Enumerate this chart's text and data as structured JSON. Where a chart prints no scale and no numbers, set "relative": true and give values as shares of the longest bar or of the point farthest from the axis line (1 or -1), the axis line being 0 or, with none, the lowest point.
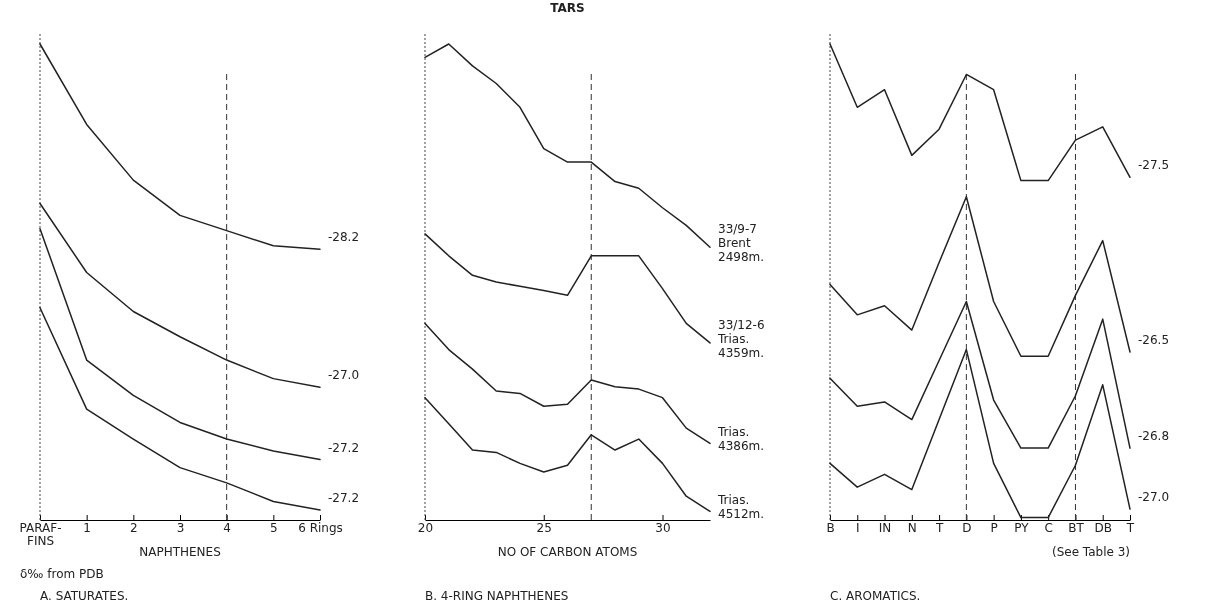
{
  "chart_data": [
    {
      "type": "line",
      "title": "A. SATURATES.",
      "xlabel": "NAPHTHENES",
      "annotations": [
        "δ‰ from PDB"
      ],
      "relative": true,
      "x": [
        0,
        1,
        2,
        3,
        4,
        5,
        6
      ],
      "xlim": [
        0,
        6
      ],
      "xticks": [
        {
          "value": 0,
          "label": "PARAF- FINS"
        },
        1,
        2,
        3,
        4,
        5,
        {
          "value": 6,
          "label": "6 Rings"
        }
      ],
      "ref_lines": [
        {
          "axis": "x",
          "value": 4,
          "line_style": "dashed"
        }
      ],
      "series": [
        {
          "name": "-28.2",
          "color": "#222222",
          "values": [
            1,
            0.831,
            0.714,
            0.64,
            0.608,
            0.576,
            0.569
          ]
        },
        {
          "name": "-27.0",
          "color": "#222222",
          "values": [
            0.665,
            0.52,
            0.438,
            0.385,
            0.336,
            0.297,
            0.279
          ]
        },
        {
          "name": "-27.2",
          "color": "#222222",
          "values": [
            0.612,
            0.336,
            0.262,
            0.205,
            0.17,
            0.145,
            0.127
          ]
        },
        {
          "name": "-27.2",
          "color": "#222222",
          "values": [
            0.446,
            0.233,
            0.17,
            0.11,
            0.078,
            0.039,
            0.021
          ]
        }
      ]
    },
    {
      "type": "line",
      "title": "B. 4-RING NAPHTHENES",
      "xlabel": "NO OF CARBON ATOMS",
      "annotations": [
        "TARS"
      ],
      "relative": true,
      "x": [
        20,
        21,
        22,
        23,
        24,
        25,
        26,
        27,
        28,
        29,
        30,
        31,
        32
      ],
      "xlim": [
        20,
        32
      ],
      "xticks": [
        20,
        25,
        30
      ],
      "ref_lines": [
        {
          "axis": "x",
          "value": 27,
          "line_style": "dashed"
        }
      ],
      "series": [
        {
          "name": "33/9-7 Brent 2498m.",
          "color": "#222222",
          "values": [
            0.972,
            1,
            0.954,
            0.917,
            0.867,
            0.78,
            0.752,
            0.752,
            0.711,
            0.697,
            0.656,
            0.619,
            0.573
          ]
        },
        {
          "name": "33/12-6 Trias. 4359m.",
          "color": "#222222",
          "values": [
            0.601,
            0.555,
            0.514,
            0.5,
            0.491,
            0.482,
            0.472,
            0.555,
            0.555,
            0.555,
            0.486,
            0.413,
            0.372
          ]
        },
        {
          "name": "Trias. 4386m.",
          "color": "#222222",
          "values": [
            0.413,
            0.358,
            0.317,
            0.271,
            0.266,
            0.239,
            0.243,
            0.294,
            0.28,
            0.275,
            0.257,
            0.193,
            0.161
          ]
        },
        {
          "name": "Trias. 4512m.",
          "color": "#222222",
          "values": [
            0.257,
            0.202,
            0.147,
            0.142,
            0.119,
            0.101,
            0.115,
            0.179,
            0.147,
            0.17,
            0.119,
            0.05,
            0.018
          ]
        }
      ]
    },
    {
      "type": "line",
      "title": "C. AROMATICS.",
      "annotations": [
        "(See Table 3)"
      ],
      "relative": true,
      "categories": [
        "B",
        "I",
        "IN",
        "N",
        "T",
        "D",
        "P",
        "PY",
        "C",
        "BT",
        "DB",
        "T"
      ],
      "ref_lines": [
        {
          "axis": "x",
          "value": "D",
          "line_style": "dashed"
        },
        {
          "axis": "x",
          "value": "BT",
          "line_style": "dashed"
        }
      ],
      "series": [
        {
          "name": "-27.5",
          "color": "#222222",
          "values": [
            1,
            0.867,
            0.904,
            0.766,
            0.821,
            0.936,
            0.904,
            0.713,
            0.713,
            0.798,
            0.826,
            0.72
          ]
        },
        {
          "name": "-26.5",
          "color": "#222222",
          "values": [
            0.495,
            0.431,
            0.45,
            0.399,
            0.541,
            0.679,
            0.459,
            0.344,
            0.344,
            0.472,
            0.587,
            0.353
          ]
        },
        {
          "name": "-26.8",
          "color": "#222222",
          "values": [
            0.298,
            0.239,
            0.248,
            0.211,
            0.335,
            0.459,
            0.252,
            0.151,
            0.151,
            0.261,
            0.422,
            0.151
          ]
        },
        {
          "name": "-27.0",
          "color": "#222222",
          "values": [
            0.119,
            0.069,
            0.096,
            0.064,
            0.211,
            0.358,
            0.119,
            0.005,
            0.005,
            0.115,
            0.284,
            0.023
          ]
        }
      ]
    }
  ]
}
